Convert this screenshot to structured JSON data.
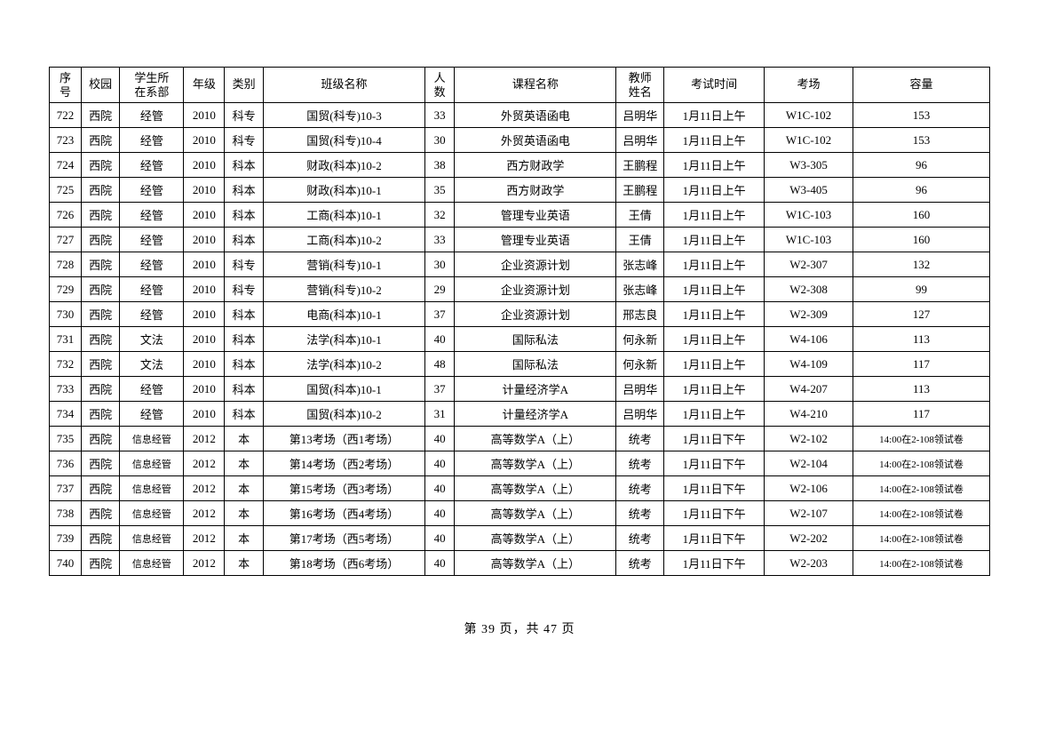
{
  "headers": {
    "seq": "序号",
    "campus": "校园",
    "dept": "学生所在系部",
    "year": "年级",
    "type": "类别",
    "className": "班级名称",
    "count": "人数",
    "course": "课程名称",
    "teacher": "教师姓名",
    "time": "考试时间",
    "room": "考场",
    "capacity": "容量"
  },
  "rows": [
    {
      "seq": "722",
      "campus": "西院",
      "dept": "经管",
      "year": "2010",
      "type": "科专",
      "className": "国贸(科专)10-3",
      "count": "33",
      "course": "外贸英语函电",
      "teacher": "吕明华",
      "time": "1月11日上午",
      "room": "W1C-102",
      "capacity": "153",
      "deptSmall": false
    },
    {
      "seq": "723",
      "campus": "西院",
      "dept": "经管",
      "year": "2010",
      "type": "科专",
      "className": "国贸(科专)10-4",
      "count": "30",
      "course": "外贸英语函电",
      "teacher": "吕明华",
      "time": "1月11日上午",
      "room": "W1C-102",
      "capacity": "153",
      "deptSmall": false
    },
    {
      "seq": "724",
      "campus": "西院",
      "dept": "经管",
      "year": "2010",
      "type": "科本",
      "className": "财政(科本)10-2",
      "count": "38",
      "course": "西方财政学",
      "teacher": "王鹏程",
      "time": "1月11日上午",
      "room": "W3-305",
      "capacity": "96",
      "deptSmall": false
    },
    {
      "seq": "725",
      "campus": "西院",
      "dept": "经管",
      "year": "2010",
      "type": "科本",
      "className": "财政(科本)10-1",
      "count": "35",
      "course": "西方财政学",
      "teacher": "王鹏程",
      "time": "1月11日上午",
      "room": "W3-405",
      "capacity": "96",
      "deptSmall": false
    },
    {
      "seq": "726",
      "campus": "西院",
      "dept": "经管",
      "year": "2010",
      "type": "科本",
      "className": "工商(科本)10-1",
      "count": "32",
      "course": "管理专业英语",
      "teacher": "王倩",
      "time": "1月11日上午",
      "room": "W1C-103",
      "capacity": "160",
      "deptSmall": false
    },
    {
      "seq": "727",
      "campus": "西院",
      "dept": "经管",
      "year": "2010",
      "type": "科本",
      "className": "工商(科本)10-2",
      "count": "33",
      "course": "管理专业英语",
      "teacher": "王倩",
      "time": "1月11日上午",
      "room": "W1C-103",
      "capacity": "160",
      "deptSmall": false
    },
    {
      "seq": "728",
      "campus": "西院",
      "dept": "经管",
      "year": "2010",
      "type": "科专",
      "className": "营销(科专)10-1",
      "count": "30",
      "course": "企业资源计划",
      "teacher": "张志峰",
      "time": "1月11日上午",
      "room": "W2-307",
      "capacity": "132",
      "deptSmall": false
    },
    {
      "seq": "729",
      "campus": "西院",
      "dept": "经管",
      "year": "2010",
      "type": "科专",
      "className": "营销(科专)10-2",
      "count": "29",
      "course": "企业资源计划",
      "teacher": "张志峰",
      "time": "1月11日上午",
      "room": "W2-308",
      "capacity": "99",
      "deptSmall": false
    },
    {
      "seq": "730",
      "campus": "西院",
      "dept": "经管",
      "year": "2010",
      "type": "科本",
      "className": "电商(科本)10-1",
      "count": "37",
      "course": "企业资源计划",
      "teacher": "邢志良",
      "time": "1月11日上午",
      "room": "W2-309",
      "capacity": "127",
      "deptSmall": false
    },
    {
      "seq": "731",
      "campus": "西院",
      "dept": "文法",
      "year": "2010",
      "type": "科本",
      "className": "法学(科本)10-1",
      "count": "40",
      "course": "国际私法",
      "teacher": "何永新",
      "time": "1月11日上午",
      "room": "W4-106",
      "capacity": "113",
      "deptSmall": false
    },
    {
      "seq": "732",
      "campus": "西院",
      "dept": "文法",
      "year": "2010",
      "type": "科本",
      "className": "法学(科本)10-2",
      "count": "48",
      "course": "国际私法",
      "teacher": "何永新",
      "time": "1月11日上午",
      "room": "W4-109",
      "capacity": "117",
      "deptSmall": false
    },
    {
      "seq": "733",
      "campus": "西院",
      "dept": "经管",
      "year": "2010",
      "type": "科本",
      "className": "国贸(科本)10-1",
      "count": "37",
      "course": "计量经济学A",
      "teacher": "吕明华",
      "time": "1月11日上午",
      "room": "W4-207",
      "capacity": "113",
      "deptSmall": false
    },
    {
      "seq": "734",
      "campus": "西院",
      "dept": "经管",
      "year": "2010",
      "type": "科本",
      "className": "国贸(科本)10-2",
      "count": "31",
      "course": "计量经济学A",
      "teacher": "吕明华",
      "time": "1月11日上午",
      "room": "W4-210",
      "capacity": "117",
      "deptSmall": false
    },
    {
      "seq": "735",
      "campus": "西院",
      "dept": "信息经管",
      "year": "2012",
      "type": "本",
      "className": "第13考场（西1考场）",
      "count": "40",
      "course": "高等数学A（上）",
      "teacher": "统考",
      "time": "1月11日下午",
      "room": "W2-102",
      "capacity": "14:00在2-108领试卷",
      "deptSmall": true
    },
    {
      "seq": "736",
      "campus": "西院",
      "dept": "信息经管",
      "year": "2012",
      "type": "本",
      "className": "第14考场（西2考场）",
      "count": "40",
      "course": "高等数学A（上）",
      "teacher": "统考",
      "time": "1月11日下午",
      "room": "W2-104",
      "capacity": "14:00在2-108领试卷",
      "deptSmall": true
    },
    {
      "seq": "737",
      "campus": "西院",
      "dept": "信息经管",
      "year": "2012",
      "type": "本",
      "className": "第15考场（西3考场）",
      "count": "40",
      "course": "高等数学A（上）",
      "teacher": "统考",
      "time": "1月11日下午",
      "room": "W2-106",
      "capacity": "14:00在2-108领试卷",
      "deptSmall": true
    },
    {
      "seq": "738",
      "campus": "西院",
      "dept": "信息经管",
      "year": "2012",
      "type": "本",
      "className": "第16考场（西4考场）",
      "count": "40",
      "course": "高等数学A（上）",
      "teacher": "统考",
      "time": "1月11日下午",
      "room": "W2-107",
      "capacity": "14:00在2-108领试卷",
      "deptSmall": true
    },
    {
      "seq": "739",
      "campus": "西院",
      "dept": "信息经管",
      "year": "2012",
      "type": "本",
      "className": "第17考场（西5考场）",
      "count": "40",
      "course": "高等数学A（上）",
      "teacher": "统考",
      "time": "1月11日下午",
      "room": "W2-202",
      "capacity": "14:00在2-108领试卷",
      "deptSmall": true
    },
    {
      "seq": "740",
      "campus": "西院",
      "dept": "信息经管",
      "year": "2012",
      "type": "本",
      "className": "第18考场（西6考场）",
      "count": "40",
      "course": "高等数学A（上）",
      "teacher": "统考",
      "time": "1月11日下午",
      "room": "W2-203",
      "capacity": "14:00在2-108领试卷",
      "deptSmall": true
    }
  ],
  "footer": {
    "text": "第 39 页，共 47 页"
  }
}
